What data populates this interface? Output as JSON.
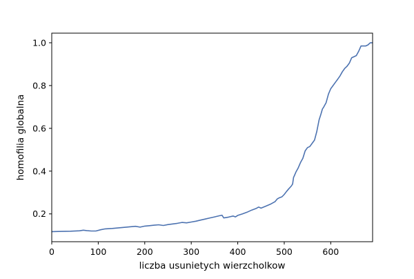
{
  "chart_data": {
    "type": "line",
    "title": "",
    "xlabel": "liczba usunietych wierzcholkow",
    "ylabel": "homofilia globalna",
    "xlim": [
      0,
      690
    ],
    "ylim": [
      0.07,
      1.045
    ],
    "xticks": [
      0,
      100,
      200,
      300,
      400,
      500,
      600
    ],
    "yticks": [
      0.2,
      0.4,
      0.6,
      0.8,
      1.0
    ],
    "xtick_labels": [
      "0",
      "100",
      "200",
      "300",
      "400",
      "500",
      "600"
    ],
    "ytick_labels": [
      "0.2",
      "0.4",
      "0.6",
      "0.8",
      "1.0"
    ],
    "grid": false,
    "legend": "none",
    "series": [
      {
        "color": "#4c72b0",
        "x": [
          0,
          20,
          40,
          60,
          68,
          75,
          85,
          95,
          105,
          115,
          130,
          150,
          170,
          180,
          190,
          200,
          210,
          220,
          230,
          240,
          250,
          260,
          270,
          280,
          290,
          300,
          310,
          320,
          330,
          340,
          350,
          360,
          366,
          370,
          380,
          390,
          395,
          400,
          410,
          420,
          430,
          440,
          445,
          450,
          460,
          470,
          480,
          485,
          490,
          495,
          500,
          505,
          510,
          515,
          518,
          520,
          522,
          525,
          530,
          535,
          540,
          545,
          550,
          555,
          560,
          565,
          570,
          575,
          578,
          580,
          582,
          585,
          590,
          595,
          600,
          605,
          610,
          615,
          620,
          625,
          630,
          635,
          640,
          645,
          650,
          655,
          660,
          665,
          670,
          675,
          680,
          685,
          690
        ],
        "y": [
          0.117,
          0.118,
          0.119,
          0.121,
          0.124,
          0.122,
          0.12,
          0.12,
          0.126,
          0.13,
          0.132,
          0.136,
          0.14,
          0.142,
          0.138,
          0.143,
          0.145,
          0.147,
          0.149,
          0.146,
          0.15,
          0.153,
          0.156,
          0.16,
          0.158,
          0.162,
          0.166,
          0.171,
          0.176,
          0.181,
          0.186,
          0.191,
          0.194,
          0.181,
          0.185,
          0.19,
          0.186,
          0.193,
          0.2,
          0.208,
          0.218,
          0.226,
          0.232,
          0.227,
          0.236,
          0.245,
          0.257,
          0.27,
          0.276,
          0.28,
          0.291,
          0.305,
          0.318,
          0.33,
          0.34,
          0.37,
          0.38,
          0.395,
          0.415,
          0.44,
          0.46,
          0.495,
          0.51,
          0.515,
          0.53,
          0.545,
          0.585,
          0.64,
          0.66,
          0.675,
          0.69,
          0.7,
          0.72,
          0.76,
          0.785,
          0.8,
          0.815,
          0.83,
          0.845,
          0.865,
          0.88,
          0.89,
          0.905,
          0.93,
          0.935,
          0.94,
          0.96,
          0.985,
          0.985,
          0.985,
          0.99,
          1.0,
          1.0
        ]
      }
    ]
  }
}
